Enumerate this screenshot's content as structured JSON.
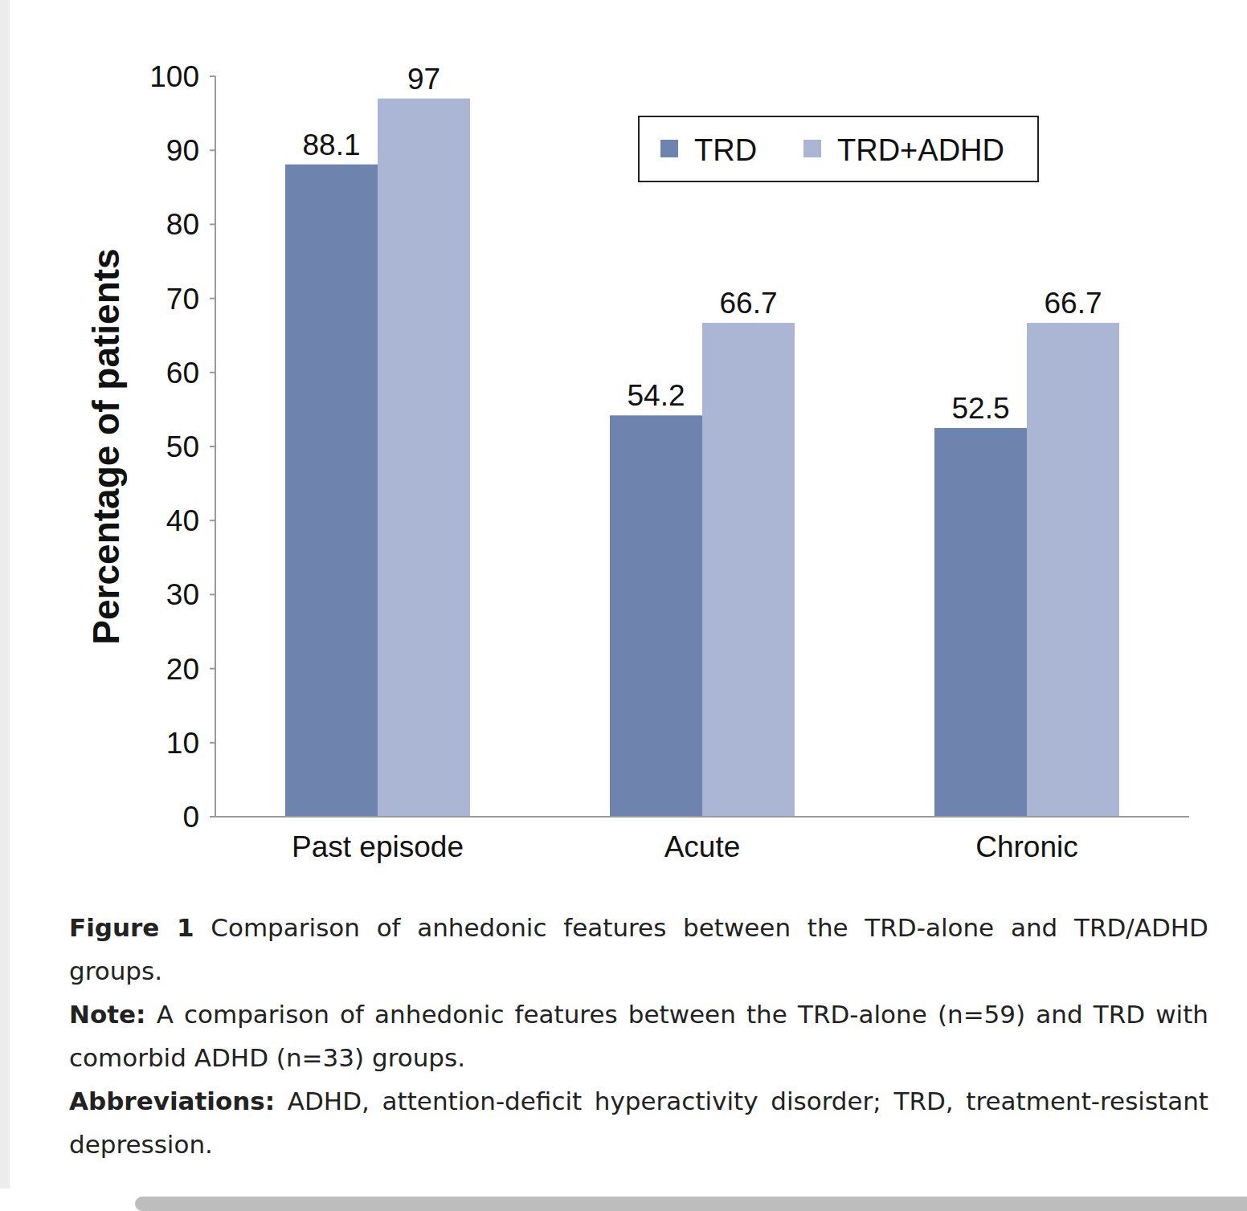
{
  "chart_data": {
    "type": "bar",
    "figure_label": "Figure 1",
    "title": "Comparison of anhedonic features between the TRD-alone and TRD/ADHD groups.",
    "note_label": "Note:",
    "note": "A comparison of anhedonic features between the TRD-alone (n=59) and TRD with comorbid ADHD (n=33) groups.",
    "abbreviations_label": "Abbreviations:",
    "abbreviations": "ADHD, attention-deficit hyperactivity disorder; TRD, treatment-resistant depression.",
    "y_label": "Percentage of patients",
    "categories": [
      "Past episode",
      "Acute",
      "Chronic"
    ],
    "series": [
      {
        "name": "TRD",
        "color": "#6e84ae",
        "values": [
          88.1,
          54.2,
          52.5
        ]
      },
      {
        "name": "TRD+ADHD",
        "color": "#aab6d4",
        "values": [
          97,
          66.7,
          66.7
        ]
      }
    ],
    "ylim": [
      0,
      100
    ],
    "yticks": [
      0,
      10,
      20,
      30,
      40,
      50,
      60,
      70,
      80,
      90,
      100
    ],
    "grid": false,
    "legend": "top-right",
    "data_labels": true
  }
}
